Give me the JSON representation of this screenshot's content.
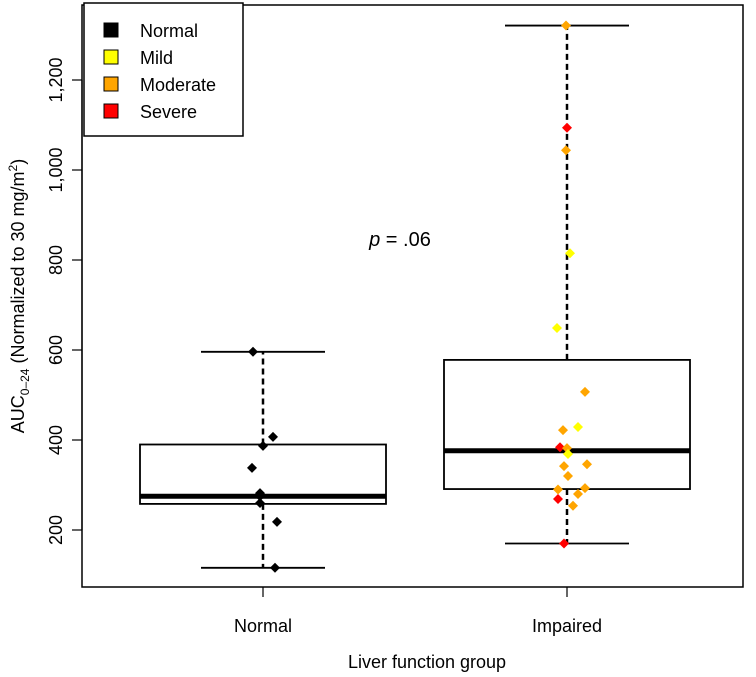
{
  "chart_data": {
    "type": "box",
    "title": "",
    "xlabel": "Liver function group",
    "ylabel": {
      "main": "AUC",
      "sub": "0–24",
      "rest": " (Normalized to 30 mg/m",
      "sup": "2",
      "close": ")"
    },
    "ylim": [
      80,
      1340
    ],
    "yticks": [
      200,
      400,
      600,
      800,
      1000,
      1200
    ],
    "ytick_labels": [
      "200",
      "400",
      "600",
      "800",
      "1,000",
      "1,200"
    ],
    "categories": [
      "Normal",
      "Impaired"
    ],
    "annotation": {
      "italic": "p",
      "text": " = .06"
    },
    "legend": {
      "position": "top-left",
      "entries": [
        {
          "label": "Normal",
          "color": "#000000"
        },
        {
          "label": "Mild",
          "color": "#ffff00"
        },
        {
          "label": "Moderate",
          "color": "#ffa500"
        },
        {
          "label": "Severe",
          "color": "#ff0000"
        }
      ]
    },
    "boxes": [
      {
        "group": "Normal",
        "whisker_low": 116,
        "q1": 258,
        "median": 275,
        "q3": 390,
        "whisker_high": 596
      },
      {
        "group": "Impaired",
        "whisker_low": 170,
        "q1": 291,
        "median": 376,
        "q3": 578,
        "whisker_high": 1321
      }
    ],
    "points": [
      {
        "group": "Normal",
        "severity": "Normal",
        "value": 596
      },
      {
        "group": "Normal",
        "severity": "Normal",
        "value": 407
      },
      {
        "group": "Normal",
        "severity": "Normal",
        "value": 387
      },
      {
        "group": "Normal",
        "severity": "Normal",
        "value": 338
      },
      {
        "group": "Normal",
        "severity": "Normal",
        "value": 282
      },
      {
        "group": "Normal",
        "severity": "Normal",
        "value": 275
      },
      {
        "group": "Normal",
        "severity": "Normal",
        "value": 260
      },
      {
        "group": "Normal",
        "severity": "Normal",
        "value": 218
      },
      {
        "group": "Normal",
        "severity": "Normal",
        "value": 116
      },
      {
        "group": "Impaired",
        "severity": "Moderate",
        "value": 1321
      },
      {
        "group": "Impaired",
        "severity": "Severe",
        "value": 1094
      },
      {
        "group": "Impaired",
        "severity": "Moderate",
        "value": 1044
      },
      {
        "group": "Impaired",
        "severity": "Mild",
        "value": 815
      },
      {
        "group": "Impaired",
        "severity": "Mild",
        "value": 649
      },
      {
        "group": "Impaired",
        "severity": "Moderate",
        "value": 507
      },
      {
        "group": "Impaired",
        "severity": "Mild",
        "value": 429
      },
      {
        "group": "Impaired",
        "severity": "Moderate",
        "value": 422
      },
      {
        "group": "Impaired",
        "severity": "Severe",
        "value": 384
      },
      {
        "group": "Impaired",
        "severity": "Moderate",
        "value": 382
      },
      {
        "group": "Impaired",
        "severity": "Mild",
        "value": 369
      },
      {
        "group": "Impaired",
        "severity": "Moderate",
        "value": 342
      },
      {
        "group": "Impaired",
        "severity": "Moderate",
        "value": 346
      },
      {
        "group": "Impaired",
        "severity": "Moderate",
        "value": 320
      },
      {
        "group": "Impaired",
        "severity": "Moderate",
        "value": 290
      },
      {
        "group": "Impaired",
        "severity": "Moderate",
        "value": 293
      },
      {
        "group": "Impaired",
        "severity": "Moderate",
        "value": 280
      },
      {
        "group": "Impaired",
        "severity": "Severe",
        "value": 269
      },
      {
        "group": "Impaired",
        "severity": "Moderate",
        "value": 254
      },
      {
        "group": "Impaired",
        "severity": "Severe",
        "value": 170
      }
    ]
  }
}
